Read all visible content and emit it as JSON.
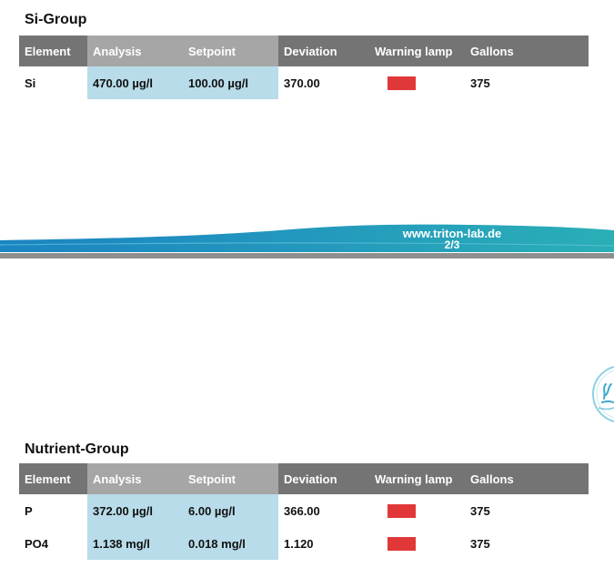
{
  "colors": {
    "warning_red": "#e03838",
    "header_dark": "#747474",
    "header_light": "#a6a6a6",
    "highlight_blue": "#b8dce9",
    "banner_teal": "#27a5b8",
    "banner_blue": "#1b84c2"
  },
  "columns": [
    "Element",
    "Analysis",
    "Setpoint",
    "Deviation",
    "Warning lamp",
    "Gallons"
  ],
  "si_group": {
    "title": "Si-Group",
    "rows": [
      {
        "element": "Si",
        "analysis": "470.00 µg/l",
        "setpoint": "100.00 µg/l",
        "deviation": "370.00",
        "lamp": "red",
        "gallons": "375"
      }
    ]
  },
  "banner": {
    "url": "www.triton-lab.de",
    "page": "2/3"
  },
  "logo": {
    "icon": "triton-coral-logo-icon"
  },
  "nutrient_group": {
    "title": "Nutrient-Group",
    "rows": [
      {
        "element": "P",
        "analysis": "372.00 µg/l",
        "setpoint": "6.00 µg/l",
        "deviation": "366.00",
        "lamp": "red",
        "gallons": "375"
      },
      {
        "element": "PO4",
        "analysis": "1.138 mg/l",
        "setpoint": "0.018 mg/l",
        "deviation": "1.120",
        "lamp": "red",
        "gallons": "375"
      }
    ]
  }
}
